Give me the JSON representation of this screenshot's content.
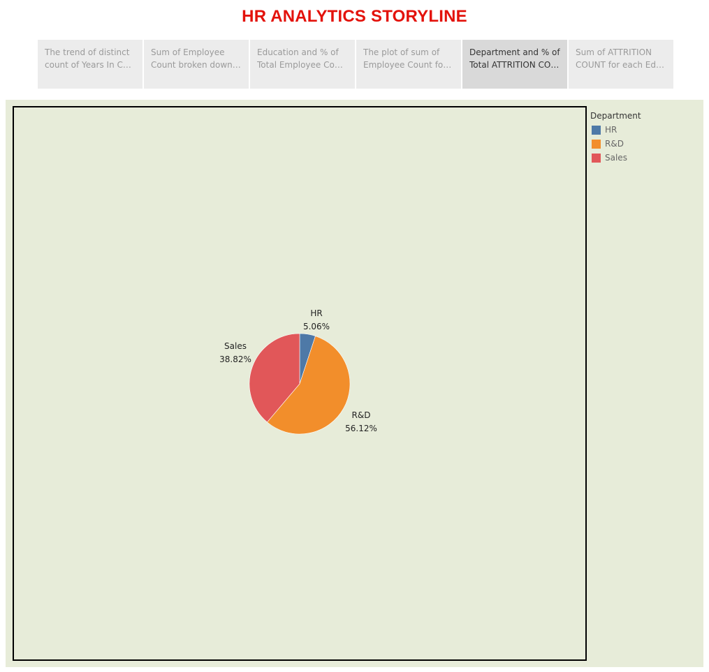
{
  "story": {
    "title": "HR ANALYTICS STORYLINE"
  },
  "nav": {
    "tabs": [
      {
        "line1": "The trend of distinct",
        "line2": "count of Years In Curr..",
        "active": false
      },
      {
        "line1": "Sum of Employee",
        "line2": "Count broken down b..",
        "active": false
      },
      {
        "line1": "Education and % of",
        "line2": "Total Employee Count..",
        "active": false
      },
      {
        "line1": "The plot of sum of",
        "line2": "Employee Count for A..",
        "active": false
      },
      {
        "line1": "Department and % of",
        "line2": "Total ATTRITION COU..",
        "active": true
      },
      {
        "line1": "Sum of ATTRITION",
        "line2": "COUNT for each Educ..",
        "active": false
      }
    ]
  },
  "legend": {
    "title": "Department",
    "items": [
      {
        "label": "HR",
        "color": "#4e79a7"
      },
      {
        "label": "R&D",
        "color": "#f28e2b"
      },
      {
        "label": "Sales",
        "color": "#e15759"
      }
    ]
  },
  "chart_data": {
    "type": "pie",
    "title": "",
    "categories": [
      "HR",
      "R&D",
      "Sales"
    ],
    "values": [
      5.06,
      56.12,
      38.82
    ],
    "value_labels": [
      "5.06%",
      "56.12%",
      "38.82%"
    ],
    "colors": [
      "#4e79a7",
      "#f28e2b",
      "#e15759"
    ],
    "legend": "top-right"
  }
}
